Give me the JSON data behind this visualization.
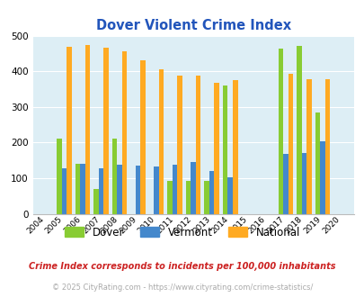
{
  "title": "Dover Violent Crime Index",
  "subtitle": "Crime Index corresponds to incidents per 100,000 inhabitants",
  "footer": "© 2025 CityRating.com - https://www.cityrating.com/crime-statistics/",
  "years": [
    2004,
    2005,
    2006,
    2007,
    2008,
    2009,
    2010,
    2011,
    2012,
    2013,
    2014,
    2015,
    2016,
    2017,
    2018,
    2019,
    2020
  ],
  "dover": [
    null,
    210,
    140,
    70,
    210,
    null,
    null,
    93,
    93,
    93,
    360,
    null,
    null,
    463,
    470,
    285,
    null
  ],
  "vermont": [
    null,
    128,
    140,
    128,
    138,
    135,
    132,
    138,
    145,
    120,
    102,
    null,
    null,
    168,
    170,
    203,
    null
  ],
  "national": [
    null,
    469,
    473,
    467,
    455,
    432,
    405,
    387,
    387,
    367,
    376,
    null,
    null,
    394,
    379,
    379,
    null
  ],
  "dover_color": "#88cc33",
  "vermont_color": "#4488cc",
  "national_color": "#ffaa22",
  "bg_color": "#ddeef5",
  "ylim": [
    0,
    500
  ],
  "yticks": [
    0,
    100,
    200,
    300,
    400,
    500
  ],
  "bar_width": 0.27,
  "title_color": "#2255bb",
  "subtitle_color": "#cc2222",
  "footer_color": "#aaaaaa"
}
